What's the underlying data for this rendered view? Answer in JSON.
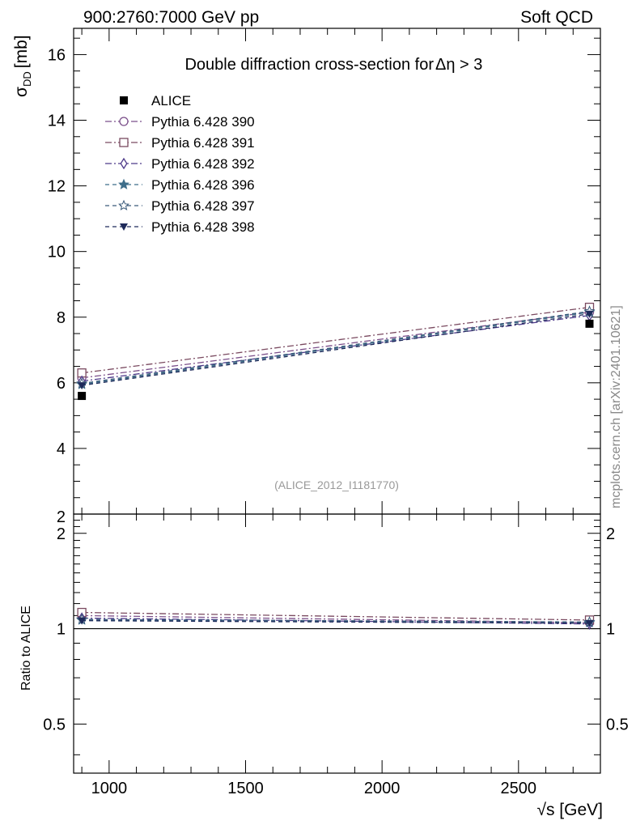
{
  "header": {
    "left": "900:2760:7000 GeV pp",
    "right": "Soft QCD",
    "side_label": "mcplots.cern.ch [arXiv:2401.10621]",
    "analysis_id": "(ALICE_2012_I1181770)"
  },
  "chart_data": {
    "type": "line",
    "title": "Double diffraction cross-section for",
    "title_symbol": "Δη > 3",
    "xlabel": "√s [GeV]",
    "ylabel": "σ",
    "ylabel_sub": "DD",
    "ylabel_unit": "[mb]",
    "ratio_ylabel": "Ratio to ALICE",
    "xlim": [
      870,
      2800
    ],
    "ylim": [
      2,
      16.8
    ],
    "ratio_ylim": [
      0.35,
      2.3
    ],
    "x_ticks": [
      1000,
      1500,
      2000,
      2500
    ],
    "x_tick_labels": [
      "1000",
      "1500",
      "2000",
      "2500"
    ],
    "y_ticks": [
      2,
      4,
      6,
      8,
      10,
      12,
      14,
      16
    ],
    "y_tick_labels": [
      "2",
      "4",
      "6",
      "8",
      "10",
      "12",
      "14",
      "16"
    ],
    "ratio_ticks": [
      0.5,
      1,
      2
    ],
    "ratio_tick_labels": [
      "0.5",
      "1",
      "2"
    ],
    "x": [
      900,
      2760
    ],
    "data": {
      "name": "ALICE",
      "values": [
        5.6,
        7.8
      ],
      "marker": "square-filled",
      "color": "#000000"
    },
    "series": [
      {
        "name": "Pythia 6.428 390",
        "values": [
          6.15,
          8.15
        ],
        "ratio": [
          1.1,
          1.045
        ],
        "marker": "circle-open",
        "color": "#7b4f8a",
        "dash": "8,3,2,3"
      },
      {
        "name": "Pythia 6.428 391",
        "values": [
          6.3,
          8.3
        ],
        "ratio": [
          1.125,
          1.065
        ],
        "marker": "square-open",
        "color": "#7a4a60",
        "dash": "8,3,2,3"
      },
      {
        "name": "Pythia 6.428 392",
        "values": [
          6.05,
          8.05
        ],
        "ratio": [
          1.08,
          1.035
        ],
        "marker": "diamond-open",
        "color": "#4e3a8a",
        "dash": "8,3,2,3"
      },
      {
        "name": "Pythia 6.428 396",
        "values": [
          5.95,
          8.15
        ],
        "ratio": [
          1.065,
          1.045
        ],
        "marker": "star-filled",
        "color": "#3e6e8a",
        "dash": "5,4"
      },
      {
        "name": "Pythia 6.428 397",
        "values": [
          5.98,
          8.18
        ],
        "ratio": [
          1.07,
          1.05
        ],
        "marker": "star-open",
        "color": "#3a5a7a",
        "dash": "5,4"
      },
      {
        "name": "Pythia 6.428 398",
        "values": [
          5.92,
          8.1
        ],
        "ratio": [
          1.06,
          1.04
        ],
        "marker": "triangle-down-filled",
        "color": "#1e2a5a",
        "dash": "5,4"
      }
    ]
  }
}
